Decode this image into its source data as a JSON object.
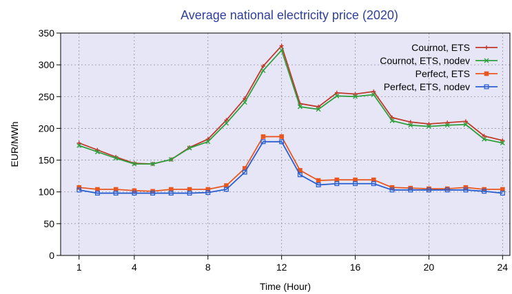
{
  "chart_data": {
    "type": "line",
    "title": "Average national electricity price (2020)",
    "xlabel": "Time (Hour)",
    "ylabel": "EUR/MWh",
    "xlim": [
      0,
      24.4
    ],
    "ylim": [
      0,
      350
    ],
    "x_ticks": [
      1,
      4,
      8,
      12,
      16,
      20,
      24
    ],
    "y_ticks": [
      0,
      50,
      100,
      150,
      200,
      250,
      300,
      350
    ],
    "grid": true,
    "legend_position": "top-right",
    "plot_background": "#e6e6f7",
    "x": [
      1,
      2,
      3,
      4,
      5,
      6,
      7,
      8,
      9,
      10,
      11,
      12,
      13,
      14,
      15,
      16,
      17,
      18,
      19,
      20,
      21,
      22,
      23,
      24
    ],
    "series": [
      {
        "name": "Cournot, ETS",
        "color": "#c0392b",
        "marker": "plus",
        "values": [
          177,
          166,
          155,
          145,
          144,
          151,
          170,
          183,
          213,
          247,
          298,
          330,
          239,
          234,
          256,
          254,
          258,
          217,
          210,
          207,
          209,
          211,
          188,
          181
        ]
      },
      {
        "name": "Cournot, ETS, nodev",
        "color": "#2e9e3c",
        "marker": "x",
        "values": [
          173,
          163,
          153,
          144,
          144,
          151,
          169,
          179,
          208,
          241,
          291,
          323,
          234,
          230,
          251,
          250,
          253,
          212,
          205,
          203,
          205,
          206,
          183,
          177
        ]
      },
      {
        "name": "Perfect, ETS",
        "color": "#e8571f",
        "marker": "square-filled",
        "values": [
          107,
          104,
          104,
          102,
          101,
          104,
          104,
          104,
          110,
          137,
          187,
          187,
          134,
          118,
          119,
          119,
          119,
          107,
          106,
          105,
          105,
          107,
          104,
          104
        ]
      },
      {
        "name": "Perfect, ETS, nodev",
        "color": "#2a5fcf",
        "marker": "square-open",
        "values": [
          103,
          98,
          98,
          98,
          98,
          98,
          98,
          99,
          104,
          131,
          179,
          179,
          127,
          111,
          113,
          113,
          113,
          103,
          103,
          103,
          103,
          103,
          101,
          98
        ]
      }
    ]
  }
}
